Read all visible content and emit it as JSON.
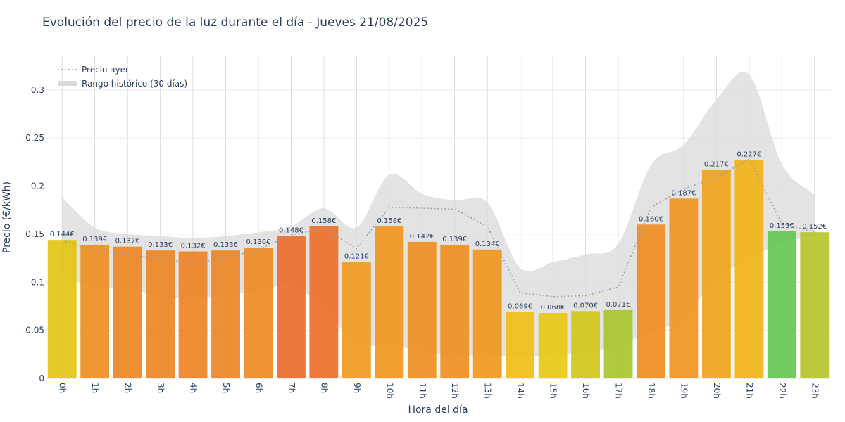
{
  "chart_data": {
    "type": "bar",
    "title": "Evolución del precio de la luz durante el día - Jueves 21/08/2025",
    "xlabel": "Hora del día",
    "ylabel": "Precio (€/kWh)",
    "ylim": [
      0,
      0.335
    ],
    "yticks": [
      0,
      0.05,
      0.1,
      0.15,
      0.2,
      0.25,
      0.3
    ],
    "ytick_labels": [
      "0",
      "0.05",
      "0.1",
      "0.15",
      "0.2",
      "0.25",
      "0.3"
    ],
    "grid": true,
    "legend_position": "top-left",
    "categories": [
      "0h",
      "1h",
      "2h",
      "3h",
      "4h",
      "5h",
      "6h",
      "7h",
      "8h",
      "9h",
      "10h",
      "11h",
      "12h",
      "13h",
      "14h",
      "15h",
      "16h",
      "17h",
      "18h",
      "19h",
      "20h",
      "21h",
      "22h",
      "23h"
    ],
    "values": [
      0.144,
      0.139,
      0.137,
      0.133,
      0.132,
      0.133,
      0.136,
      0.148,
      0.158,
      0.121,
      0.158,
      0.142,
      0.139,
      0.134,
      0.069,
      0.068,
      0.07,
      0.071,
      0.16,
      0.187,
      0.217,
      0.227,
      0.153,
      0.152
    ],
    "value_labels": [
      "0.144€",
      "0.139€",
      "0.137€",
      "0.133€",
      "0.132€",
      "0.133€",
      "0.136€",
      "0.148€",
      "0.158€",
      "0.121€",
      "0.158€",
      "0.142€",
      "0.139€",
      "0.134€",
      "0.069€",
      "0.068€",
      "0.070€",
      "0.071€",
      "0.160€",
      "0.187€",
      "0.217€",
      "0.227€",
      "0.153€",
      "0.152€"
    ],
    "bar_colors": [
      "#e2c415",
      "#ee8f22",
      "#ee8724",
      "#ee8624",
      "#ee8325",
      "#ee8624",
      "#ee8b23",
      "#ea6d2c",
      "#ea702b",
      "#f09a1f",
      "#f09720",
      "#ef9021",
      "#ef9021",
      "#ef9720",
      "#f0be14",
      "#e8c814",
      "#d4c61a",
      "#a8c62c",
      "#ef8e22",
      "#ef9621",
      "#f1a31c",
      "#f1b318",
      "#64c850",
      "#b5c62b"
    ],
    "series": [
      {
        "name": "Precio ayer",
        "style": "dotted-line",
        "color": "#9aa0a4",
        "values": [
          0.143,
          0.134,
          0.129,
          0.124,
          0.12,
          0.125,
          0.134,
          0.149,
          0.156,
          0.135,
          0.178,
          0.177,
          0.176,
          0.158,
          0.089,
          0.085,
          0.086,
          0.095,
          0.178,
          0.197,
          0.209,
          0.228,
          0.161,
          0.152
        ]
      },
      {
        "name": "Rango histórico (30 días)",
        "style": "band",
        "color": "#d9d9d9",
        "lower": [
          0.107,
          0.095,
          0.093,
          0.086,
          0.083,
          0.087,
          0.09,
          0.097,
          0.072,
          0.036,
          0.035,
          0.028,
          0.024,
          0.024,
          0.023,
          0.024,
          0.027,
          0.035,
          0.048,
          0.063,
          0.104,
          0.124,
          0.141,
          0.148
        ],
        "upper": [
          0.188,
          0.157,
          0.15,
          0.148,
          0.146,
          0.148,
          0.152,
          0.158,
          0.177,
          0.157,
          0.212,
          0.192,
          0.185,
          0.183,
          0.115,
          0.121,
          0.129,
          0.14,
          0.222,
          0.243,
          0.29,
          0.316,
          0.223,
          0.191
        ]
      }
    ]
  }
}
